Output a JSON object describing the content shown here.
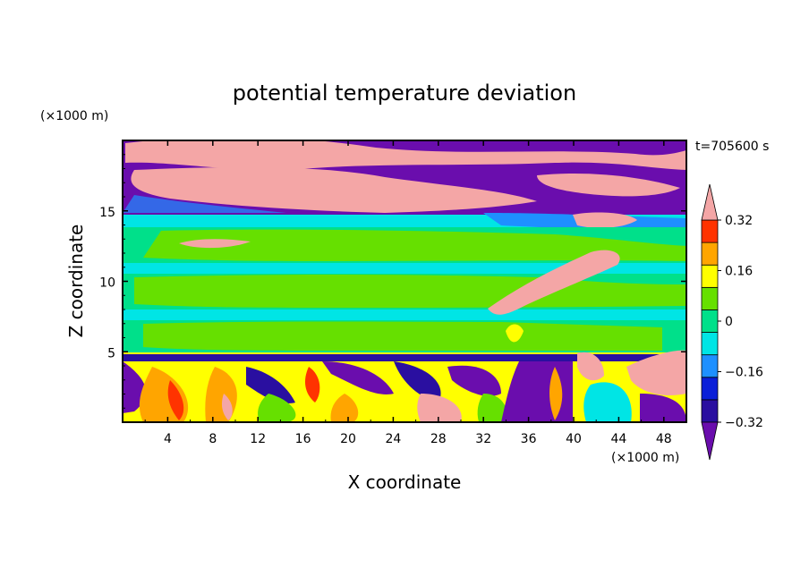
{
  "chart_data": {
    "type": "heatmap",
    "title": "potential temperature deviation",
    "xlabel": "X coordinate",
    "ylabel": "Z coordinate",
    "x_unit": "(×1000 m)",
    "y_unit": "(×1000 m)",
    "time_label": "t=705600 s",
    "xlim": [
      0,
      50
    ],
    "ylim": [
      0,
      20
    ],
    "x_ticks": [
      4,
      8,
      12,
      16,
      20,
      24,
      28,
      32,
      36,
      40,
      44,
      48
    ],
    "y_ticks": [
      5,
      10,
      15
    ],
    "colorbar": {
      "levels": [
        -0.4,
        -0.32,
        -0.24,
        -0.16,
        -0.08,
        0,
        0.08,
        0.16,
        0.24,
        0.32,
        0.4
      ],
      "tick_values": [
        -0.32,
        -0.16,
        0,
        0.16,
        0.32
      ],
      "tick_labels": [
        "−0.32",
        "−0.16",
        "0",
        "0.16",
        "0.32"
      ],
      "colors": [
        "#6a0dad",
        "#2a0fa0",
        "#0a1fd8",
        "#1e90ff",
        "#00e5e5",
        "#00e08a",
        "#66e000",
        "#ffff00",
        "#ffa500",
        "#ff3300",
        "#f4a6a6"
      ],
      "extend": "both"
    }
  }
}
